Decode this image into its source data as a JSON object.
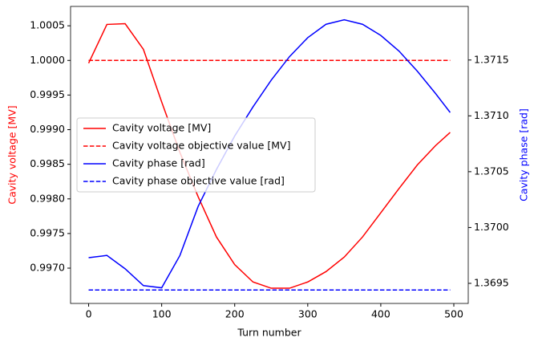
{
  "chart_data": {
    "type": "line",
    "xlabel": "Turn number",
    "ylabel": "Cavity voltage [MV]",
    "y2label": "Cavity phase [rad]",
    "ylabel_color": "#ff0000",
    "y2label_color": "#0000ff",
    "x": [
      0,
      25,
      50,
      75,
      100,
      125,
      150,
      175,
      200,
      225,
      250,
      275,
      300,
      325,
      350,
      375,
      400,
      425,
      450,
      475,
      495
    ],
    "series": [
      {
        "name": "Cavity voltage [MV]",
        "color": "#ff0000",
        "dashed": false,
        "axis": "y",
        "values": [
          0.99996,
          1.00052,
          1.00053,
          1.00016,
          0.9994,
          0.99867,
          0.99803,
          0.99745,
          0.99705,
          0.9968,
          0.99671,
          0.99671,
          0.9968,
          0.99695,
          0.99716,
          0.99745,
          0.9978,
          0.99815,
          0.99849,
          0.99877,
          0.99896
        ]
      },
      {
        "name": "Cavity voltage objective value [MV]",
        "color": "#ff0000",
        "dashed": true,
        "axis": "y",
        "values": [
          1,
          1,
          1,
          1,
          1,
          1,
          1,
          1,
          1,
          1,
          1,
          1,
          1,
          1,
          1,
          1,
          1,
          1,
          1,
          1,
          1
        ]
      },
      {
        "name": "Cavity phase [rad]",
        "color": "#0000ff",
        "dashed": false,
        "axis": "y2",
        "values": [
          1.36973,
          1.36975,
          1.36963,
          1.36948,
          1.36946,
          1.36975,
          1.37019,
          1.37052,
          1.37082,
          1.37108,
          1.37132,
          1.37153,
          1.3717,
          1.37182,
          1.37186,
          1.37182,
          1.37172,
          1.37158,
          1.3714,
          1.3712,
          1.37103
        ]
      },
      {
        "name": "Cavity phase objective value [rad]",
        "color": "#0000ff",
        "dashed": true,
        "axis": "y2",
        "values": [
          1.36944,
          1.36944,
          1.36944,
          1.36944,
          1.36944,
          1.36944,
          1.36944,
          1.36944,
          1.36944,
          1.36944,
          1.36944,
          1.36944,
          1.36944,
          1.36944,
          1.36944,
          1.36944,
          1.36944,
          1.36944,
          1.36944,
          1.36944,
          1.36944
        ]
      }
    ],
    "xlim": [
      -24.75,
      519.75
    ],
    "xticks": [
      0,
      100,
      200,
      300,
      400,
      500
    ],
    "ylim": [
      0.99649,
      1.00078
    ],
    "yticks": [
      {
        "value": 0.997,
        "label": "0.9970"
      },
      0.9975,
      {
        "value": 0.998,
        "label": "0.9980"
      },
      0.9985,
      {
        "value": 0.999,
        "label": "0.9990"
      },
      0.9995,
      {
        "value": 1.0,
        "label": "1.0000"
      },
      1.0005
    ],
    "y2lim": [
      1.36932,
      1.37198
    ],
    "y2ticks": [
      1.3695,
      {
        "value": 1.37,
        "label": "1.3700"
      },
      1.3705,
      {
        "value": 1.371,
        "label": "1.3710"
      },
      1.3715
    ],
    "legend": "center left",
    "grid": false
  }
}
